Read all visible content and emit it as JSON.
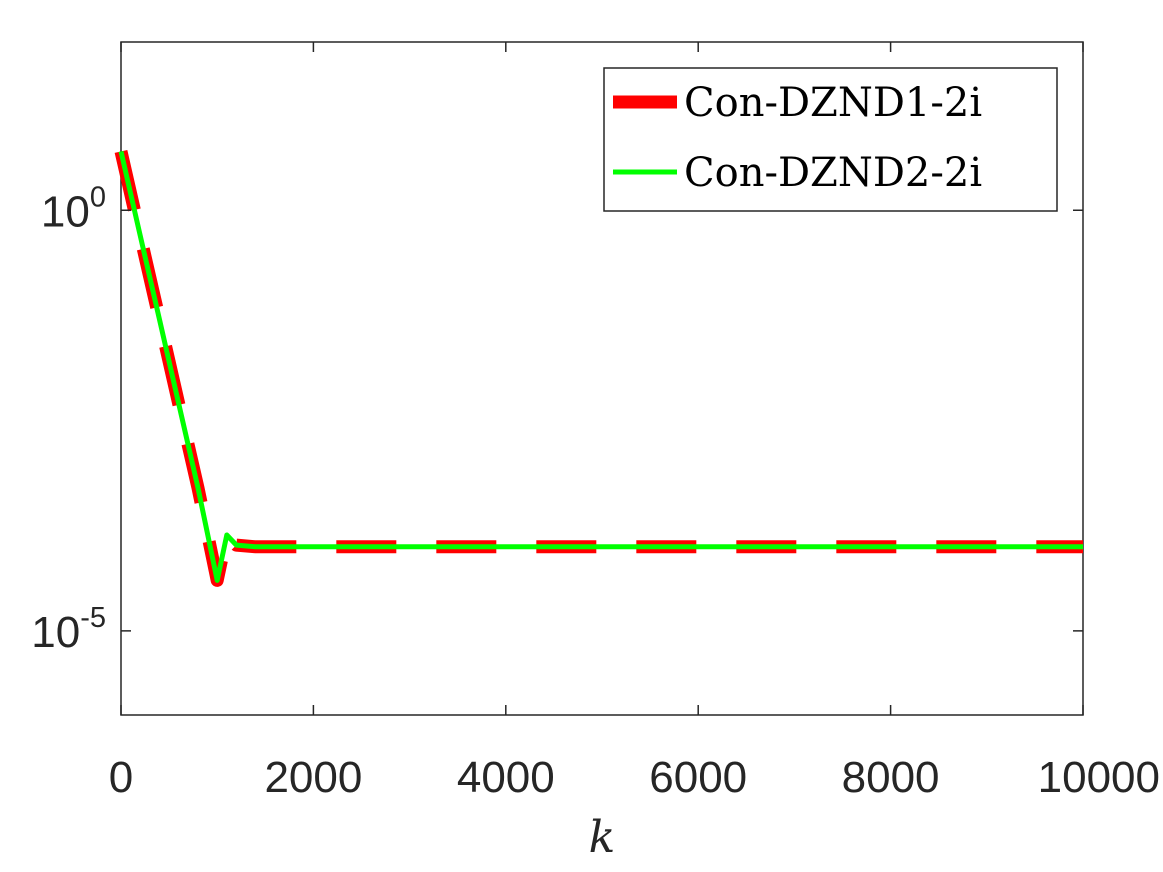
{
  "chart_data": {
    "type": "line",
    "title": "",
    "xlabel": "k",
    "ylabel": "",
    "xlim": [
      0,
      10000
    ],
    "ylim_log10": [
      -6,
      2
    ],
    "yscale": "log",
    "grid": false,
    "legend_position": "top-right",
    "x_ticks": [
      {
        "value": 0,
        "label": "0"
      },
      {
        "value": 2000,
        "label": "2000"
      },
      {
        "value": 4000,
        "label": "4000"
      },
      {
        "value": 6000,
        "label": "6000"
      },
      {
        "value": 8000,
        "label": "8000"
      },
      {
        "value": 10000,
        "label": "10000"
      }
    ],
    "y_ticks": [
      {
        "log10": 0,
        "base": "10",
        "exp": "0"
      },
      {
        "log10": -5,
        "base": "10",
        "exp": "-5"
      }
    ],
    "series": [
      {
        "name": "Con-DZND1-2i",
        "color": "#ff0000",
        "style": "dashed",
        "x": [
          0,
          200,
          400,
          600,
          800,
          1000,
          1100,
          1200,
          1400,
          2000,
          3000,
          4000,
          5000,
          6000,
          7000,
          8000,
          9000,
          10000
        ],
        "log10_y": [
          0.7,
          -0.3,
          -1.3,
          -2.3,
          -3.3,
          -4.4,
          -3.86,
          -3.98,
          -4.0,
          -4.0,
          -4.0,
          -4.0,
          -4.0,
          -4.0,
          -4.0,
          -4.0,
          -4.0,
          -4.0
        ]
      },
      {
        "name": "Con-DZND2-2i",
        "color": "#00ff00",
        "style": "solid",
        "x": [
          0,
          200,
          400,
          600,
          800,
          1000,
          1100,
          1200,
          1400,
          2000,
          3000,
          4000,
          5000,
          6000,
          7000,
          8000,
          9000,
          10000
        ],
        "log10_y": [
          0.7,
          -0.3,
          -1.3,
          -2.3,
          -3.3,
          -4.4,
          -3.86,
          -3.98,
          -4.0,
          -4.0,
          -4.0,
          -4.0,
          -4.0,
          -4.0,
          -4.0,
          -4.0,
          -4.0,
          -4.0
        ]
      }
    ]
  }
}
